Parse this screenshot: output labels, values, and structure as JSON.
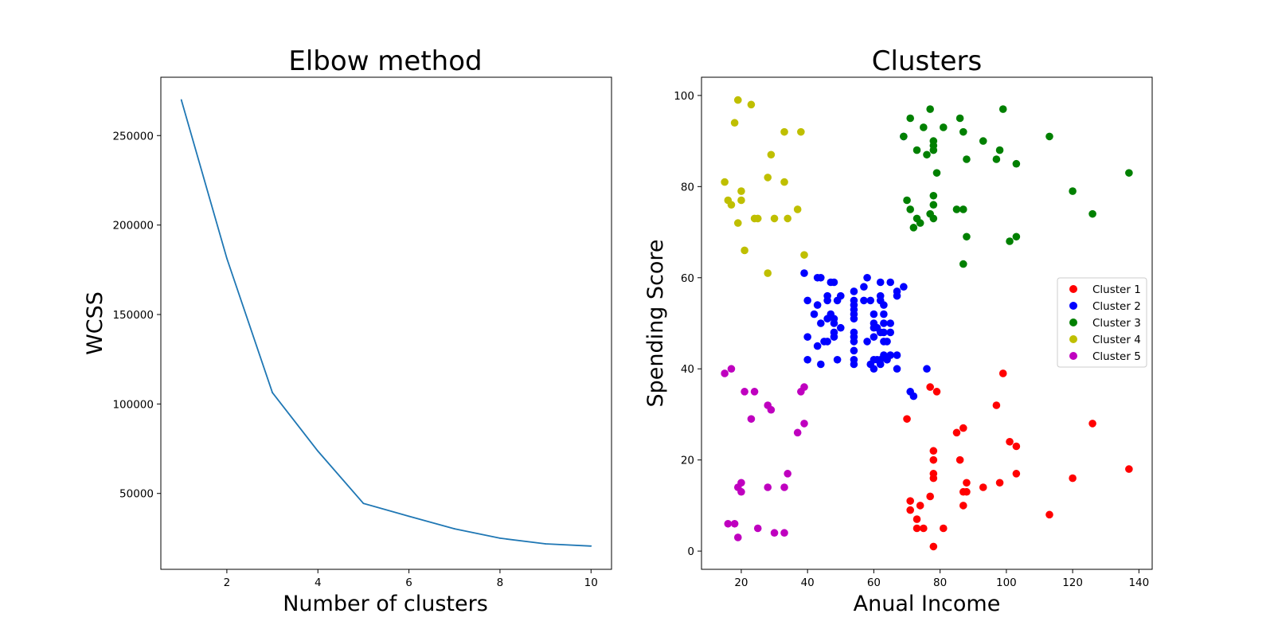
{
  "chart_data": [
    {
      "type": "line",
      "title": "Elbow method",
      "xlabel": "Number of clusters",
      "ylabel": "WCSS",
      "xlim": [
        0.55,
        10.45
      ],
      "ylim": [
        7600,
        282600
      ],
      "xticks": [
        2,
        4,
        6,
        8,
        10
      ],
      "yticks": [
        50000,
        100000,
        150000,
        200000,
        250000
      ],
      "xtick_labels": [
        "2",
        "4",
        "6",
        "8",
        "10"
      ],
      "ytick_labels": [
        "50000",
        "100000",
        "150000",
        "200000",
        "250000"
      ],
      "color": "#1f77b4",
      "grid": false,
      "x": [
        1,
        2,
        3,
        4,
        5,
        6,
        7,
        8,
        9,
        10
      ],
      "y": [
        269981,
        181364,
        106348,
        73679,
        44448,
        37233,
        30260,
        25011,
        21850,
        20610
      ]
    },
    {
      "type": "scatter",
      "title": "Clusters",
      "xlabel": "Anual Income",
      "ylabel": "Spending Score",
      "xlim": [
        8,
        144
      ],
      "ylim": [
        -4,
        104
      ],
      "xticks": [
        20,
        40,
        60,
        80,
        100,
        120,
        140
      ],
      "yticks": [
        0,
        20,
        40,
        60,
        80,
        100
      ],
      "xtick_labels": [
        "20",
        "40",
        "60",
        "80",
        "100",
        "120",
        "140"
      ],
      "ytick_labels": [
        "0",
        "20",
        "40",
        "60",
        "80",
        "100"
      ],
      "grid": false,
      "legend_position": "center-right",
      "series": [
        {
          "name": "Cluster 1",
          "color": "#ff0000",
          "points": [
            [
              70,
              29
            ],
            [
              71,
              11
            ],
            [
              71,
              9
            ],
            [
              73,
              5
            ],
            [
              73,
              7
            ],
            [
              74,
              10
            ],
            [
              75,
              5
            ],
            [
              77,
              12
            ],
            [
              77,
              36
            ],
            [
              78,
              22
            ],
            [
              78,
              20
            ],
            [
              78,
              17
            ],
            [
              78,
              16
            ],
            [
              78,
              1
            ],
            [
              79,
              35
            ],
            [
              81,
              5
            ],
            [
              85,
              26
            ],
            [
              86,
              20
            ],
            [
              87,
              27
            ],
            [
              87,
              13
            ],
            [
              87,
              10
            ],
            [
              88,
              13
            ],
            [
              88,
              15
            ],
            [
              93,
              14
            ],
            [
              97,
              32
            ],
            [
              98,
              15
            ],
            [
              99,
              39
            ],
            [
              101,
              24
            ],
            [
              103,
              23
            ],
            [
              103,
              17
            ],
            [
              113,
              8
            ],
            [
              120,
              16
            ],
            [
              126,
              28
            ],
            [
              137,
              18
            ]
          ]
        },
        {
          "name": "Cluster 2",
          "color": "#0000ff",
          "points": [
            [
              39,
              61
            ],
            [
              40,
              55
            ],
            [
              40,
              47
            ],
            [
              40,
              42
            ],
            [
              42,
              52
            ],
            [
              43,
              60
            ],
            [
              43,
              54
            ],
            [
              43,
              45
            ],
            [
              44,
              60
            ],
            [
              44,
              50
            ],
            [
              44,
              41
            ],
            [
              45,
              46
            ],
            [
              46,
              51
            ],
            [
              46,
              46
            ],
            [
              46,
              56
            ],
            [
              46,
              55
            ],
            [
              47,
              52
            ],
            [
              47,
              59
            ],
            [
              48,
              51
            ],
            [
              48,
              59
            ],
            [
              48,
              50
            ],
            [
              48,
              48
            ],
            [
              48,
              47
            ],
            [
              49,
              55
            ],
            [
              49,
              42
            ],
            [
              50,
              49
            ],
            [
              50,
              56
            ],
            [
              54,
              47
            ],
            [
              54,
              54
            ],
            [
              54,
              53
            ],
            [
              54,
              48
            ],
            [
              54,
              52
            ],
            [
              54,
              42
            ],
            [
              54,
              51
            ],
            [
              54,
              55
            ],
            [
              54,
              41
            ],
            [
              54,
              44
            ],
            [
              54,
              57
            ],
            [
              54,
              46
            ],
            [
              57,
              58
            ],
            [
              57,
              55
            ],
            [
              58,
              60
            ],
            [
              58,
              46
            ],
            [
              59,
              55
            ],
            [
              59,
              41
            ],
            [
              60,
              49
            ],
            [
              60,
              40
            ],
            [
              60,
              42
            ],
            [
              60,
              52
            ],
            [
              60,
              47
            ],
            [
              60,
              50
            ],
            [
              61,
              42
            ],
            [
              61,
              49
            ],
            [
              62,
              41
            ],
            [
              62,
              48
            ],
            [
              62,
              59
            ],
            [
              62,
              55
            ],
            [
              62,
              56
            ],
            [
              62,
              42
            ],
            [
              63,
              50
            ],
            [
              63,
              46
            ],
            [
              63,
              43
            ],
            [
              63,
              48
            ],
            [
              63,
              52
            ],
            [
              63,
              54
            ],
            [
              64,
              42
            ],
            [
              64,
              46
            ],
            [
              65,
              48
            ],
            [
              65,
              50
            ],
            [
              65,
              43
            ],
            [
              65,
              59
            ],
            [
              67,
              43
            ],
            [
              67,
              57
            ],
            [
              67,
              56
            ],
            [
              67,
              40
            ],
            [
              69,
              58
            ],
            [
              69,
              91
            ],
            [
              71,
              35
            ],
            [
              72,
              34
            ],
            [
              76,
              40
            ]
          ]
        },
        {
          "name": "Cluster 3",
          "color": "#008000",
          "points": [
            [
              69,
              91
            ],
            [
              70,
              77
            ],
            [
              71,
              95
            ],
            [
              71,
              75
            ],
            [
              72,
              71
            ],
            [
              73,
              88
            ],
            [
              73,
              73
            ],
            [
              74,
              72
            ],
            [
              75,
              93
            ],
            [
              76,
              87
            ],
            [
              77,
              97
            ],
            [
              77,
              74
            ],
            [
              78,
              90
            ],
            [
              78,
              88
            ],
            [
              78,
              89
            ],
            [
              78,
              78
            ],
            [
              78,
              73
            ],
            [
              78,
              76
            ],
            [
              79,
              83
            ],
            [
              81,
              93
            ],
            [
              85,
              75
            ],
            [
              86,
              95
            ],
            [
              87,
              63
            ],
            [
              87,
              75
            ],
            [
              87,
              92
            ],
            [
              88,
              86
            ],
            [
              88,
              69
            ],
            [
              93,
              90
            ],
            [
              97,
              86
            ],
            [
              98,
              88
            ],
            [
              99,
              97
            ],
            [
              101,
              68
            ],
            [
              103,
              85
            ],
            [
              103,
              69
            ],
            [
              113,
              91
            ],
            [
              120,
              79
            ],
            [
              126,
              74
            ],
            [
              137,
              83
            ]
          ]
        },
        {
          "name": "Cluster 4",
          "color": "#bfbf00",
          "points": [
            [
              15,
              81
            ],
            [
              16,
              77
            ],
            [
              17,
              76
            ],
            [
              18,
              94
            ],
            [
              19,
              72
            ],
            [
              19,
              99
            ],
            [
              20,
              77
            ],
            [
              20,
              79
            ],
            [
              21,
              66
            ],
            [
              23,
              98
            ],
            [
              24,
              73
            ],
            [
              25,
              73
            ],
            [
              28,
              82
            ],
            [
              28,
              61
            ],
            [
              29,
              87
            ],
            [
              30,
              73
            ],
            [
              33,
              92
            ],
            [
              33,
              81
            ],
            [
              34,
              73
            ],
            [
              37,
              75
            ],
            [
              38,
              92
            ],
            [
              39,
              65
            ]
          ]
        },
        {
          "name": "Cluster 5",
          "color": "#bf00bf",
          "points": [
            [
              15,
              39
            ],
            [
              16,
              6
            ],
            [
              17,
              40
            ],
            [
              18,
              6
            ],
            [
              19,
              3
            ],
            [
              19,
              14
            ],
            [
              20,
              15
            ],
            [
              20,
              13
            ],
            [
              21,
              35
            ],
            [
              23,
              29
            ],
            [
              24,
              35
            ],
            [
              25,
              5
            ],
            [
              28,
              14
            ],
            [
              28,
              32
            ],
            [
              29,
              31
            ],
            [
              30,
              4
            ],
            [
              33,
              4
            ],
            [
              33,
              14
            ],
            [
              34,
              17
            ],
            [
              37,
              26
            ],
            [
              38,
              35
            ],
            [
              39,
              36
            ],
            [
              39,
              28
            ]
          ]
        }
      ]
    }
  ]
}
